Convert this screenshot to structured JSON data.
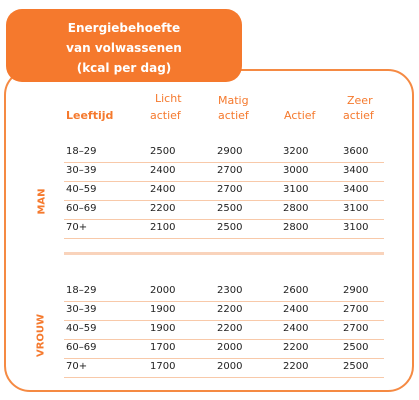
{
  "title": {
    "line1": "Energiebehoefte",
    "line2": "van volwassenen",
    "line3": "(kcal per dag)"
  },
  "columns": {
    "age": "Leeftijd",
    "c1_line1": "Licht",
    "c1_line2": "actief",
    "c2_line1": "Matig",
    "c2_line2": "actief",
    "c3": "Actief",
    "c4_line1": "Zeer",
    "c4_line2": "actief"
  },
  "groups": [
    {
      "label": "MAN",
      "rows": [
        {
          "age": "18–29",
          "light": "2500",
          "moderate": "2900",
          "active": "3200",
          "very": "3600"
        },
        {
          "age": "30–39",
          "light": "2400",
          "moderate": "2700",
          "active": "3000",
          "very": "3400"
        },
        {
          "age": "40–59",
          "light": "2400",
          "moderate": "2700",
          "active": "3100",
          "very": "3400"
        },
        {
          "age": "60–69",
          "light": "2200",
          "moderate": "2500",
          "active": "2800",
          "very": "3100"
        },
        {
          "age": "70+",
          "light": "2100",
          "moderate": "2500",
          "active": "2800",
          "very": "3100"
        }
      ]
    },
    {
      "label": "VROUW",
      "rows": [
        {
          "age": "18–29",
          "light": "2000",
          "moderate": "2300",
          "active": "2600",
          "very": "2900"
        },
        {
          "age": "30–39",
          "light": "1900",
          "moderate": "2200",
          "active": "2400",
          "very": "2700"
        },
        {
          "age": "40–59",
          "light": "1900",
          "moderate": "2200",
          "active": "2400",
          "very": "2700"
        },
        {
          "age": "60–69",
          "light": "1700",
          "moderate": "2000",
          "active": "2200",
          "very": "2500"
        },
        {
          "age": "70+",
          "light": "1700",
          "moderate": "2000",
          "active": "2200",
          "very": "2500"
        }
      ]
    }
  ],
  "colors": {
    "accent": "#f5792d",
    "border": "#f58a43",
    "row_line": "#f8c9a9"
  }
}
